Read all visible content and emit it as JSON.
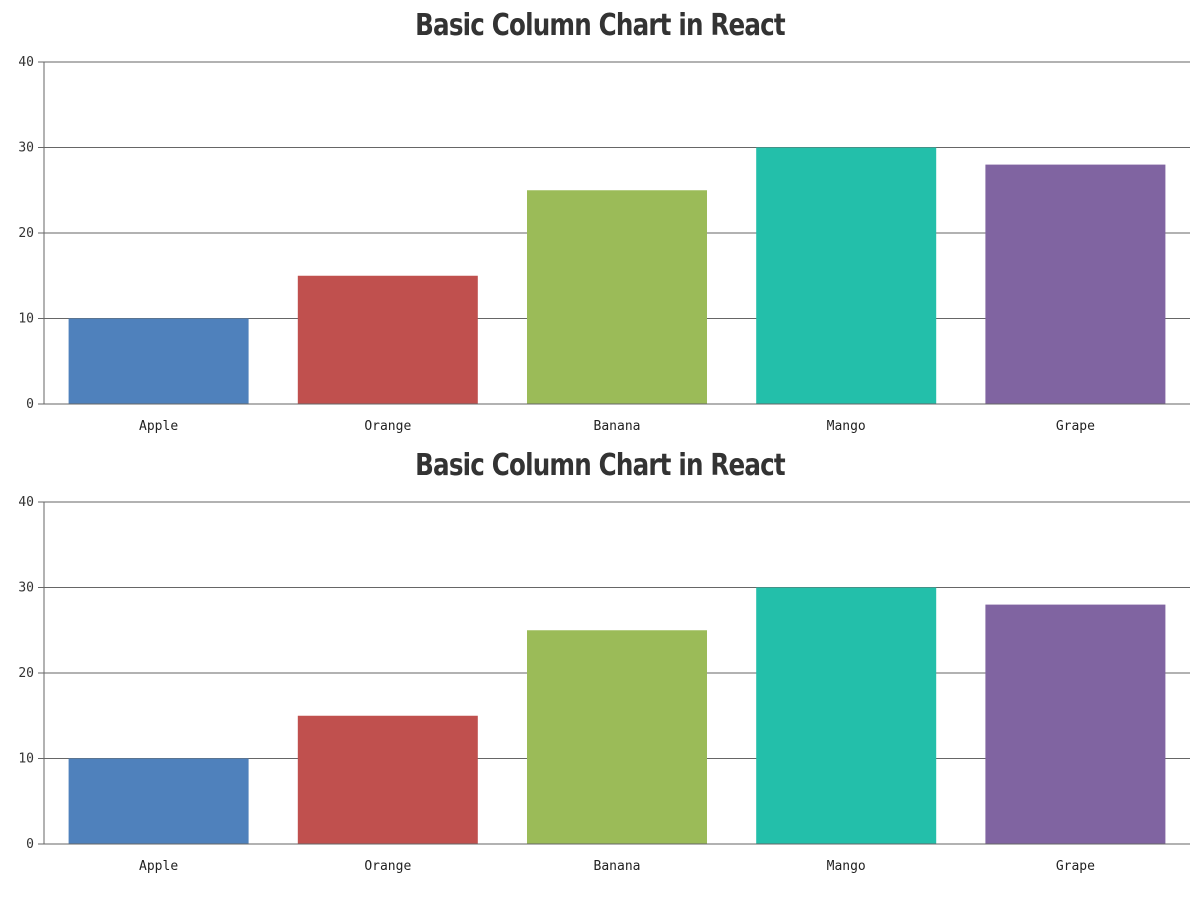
{
  "chart_data": [
    {
      "type": "bar",
      "title": "Basic Column Chart in React",
      "categories": [
        "Apple",
        "Orange",
        "Banana",
        "Mango",
        "Grape"
      ],
      "values": [
        10,
        15,
        25,
        30,
        28
      ],
      "colors": [
        "#4f81bc",
        "#c0504e",
        "#9bbb58",
        "#23bfaa",
        "#8064a1"
      ],
      "ylim": [
        0,
        40
      ],
      "yticks": [
        "0",
        "10",
        "20",
        "30",
        "40"
      ],
      "xlabel": "",
      "ylabel": "",
      "grid": true
    },
    {
      "type": "bar",
      "title": "Basic Column Chart in React",
      "categories": [
        "Apple",
        "Orange",
        "Banana",
        "Mango",
        "Grape"
      ],
      "values": [
        10,
        15,
        25,
        30,
        28
      ],
      "colors": [
        "#4f81bc",
        "#c0504e",
        "#9bbb58",
        "#23bfaa",
        "#8064a1"
      ],
      "ylim": [
        0,
        40
      ],
      "yticks": [
        "0",
        "10",
        "20",
        "30",
        "40"
      ],
      "xlabel": "",
      "ylabel": "",
      "grid": true
    }
  ]
}
